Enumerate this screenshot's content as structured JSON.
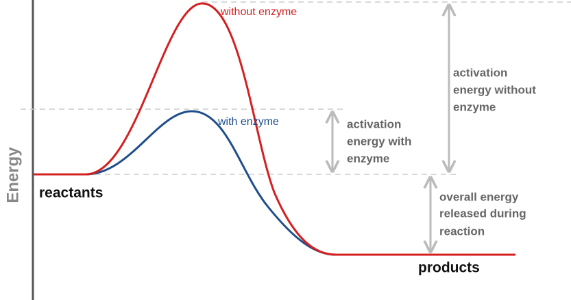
{
  "axis_label": "Energy",
  "curves": [
    {
      "label": "without enzyme"
    },
    {
      "label": "with enzyme"
    }
  ],
  "levels": {
    "reactants": "reactants",
    "products": "products"
  },
  "annotations": {
    "activation_without": [
      "activation",
      "energy without",
      "enzyme"
    ],
    "activation_with": [
      "activation",
      "energy with",
      "enzyme"
    ],
    "overall": [
      "overall energy",
      "released during",
      "reaction"
    ]
  }
}
